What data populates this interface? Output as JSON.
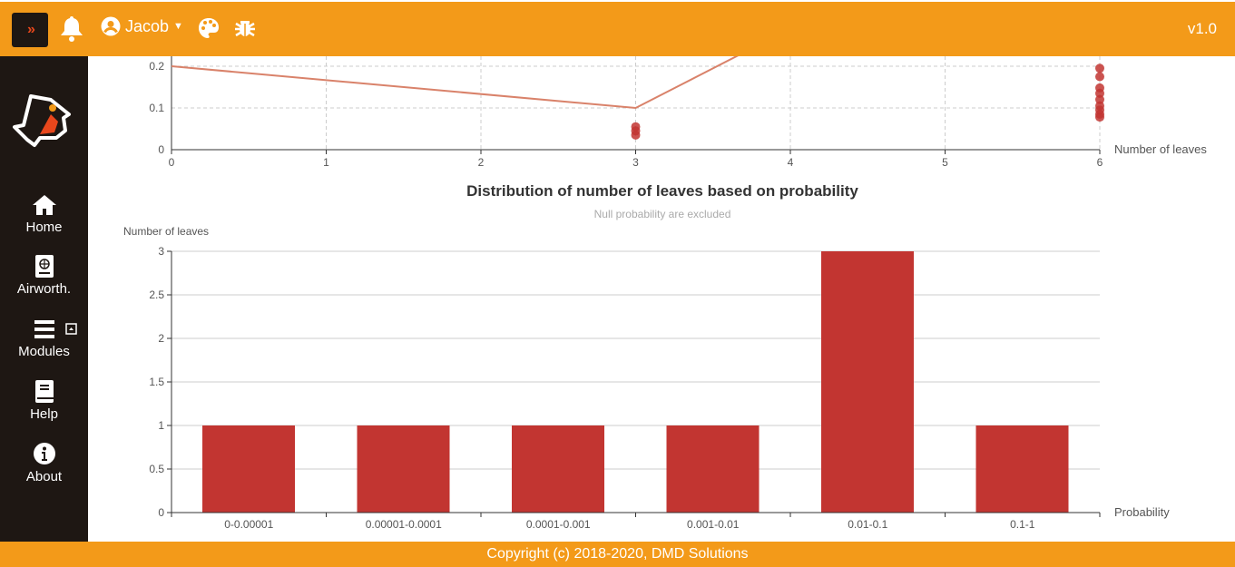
{
  "topbar": {
    "toggle_icon": "double-chevron-right-icon",
    "user": "Jacob",
    "version": "v1.0",
    "icons": [
      "bell-icon",
      "user-circle-icon",
      "palette-icon",
      "bug-icon"
    ]
  },
  "sidebar": {
    "items": [
      {
        "label": "Home",
        "icon": "home-icon"
      },
      {
        "label": "Airworth.",
        "icon": "passport-book-icon"
      },
      {
        "label": "Modules",
        "icon": "bars-icon"
      },
      {
        "label": "Help",
        "icon": "book-icon"
      },
      {
        "label": "About",
        "icon": "info-circle-icon"
      }
    ]
  },
  "footer": {
    "text": "Copyright (c) 2018-2020, DMD Solutions"
  },
  "colors": {
    "accent": "#f39a19",
    "sidebar": "#1e1713",
    "bar": "#c23531",
    "line": "#d9826a"
  },
  "chart_data": [
    {
      "type": "scatter",
      "xlabel": "Number of leaves",
      "ylabel": "",
      "xlim": [
        0,
        6
      ],
      "ylim_visible": [
        0,
        0.22
      ],
      "xticks": [
        "0",
        "1",
        "2",
        "3",
        "4",
        "5",
        "6"
      ],
      "yticks": [
        "0",
        "0.1",
        "0.2"
      ],
      "grid": true,
      "line": {
        "x": [
          0,
          3,
          6
        ],
        "y": [
          0.2,
          0.1,
          0.67
        ]
      },
      "points": {
        "x": [
          3,
          3,
          3,
          6,
          6,
          6,
          6,
          6,
          6,
          6,
          6,
          6
        ],
        "y": [
          0.035,
          0.045,
          0.055,
          0.195,
          0.175,
          0.148,
          0.135,
          0.12,
          0.105,
          0.095,
          0.085,
          0.078
        ]
      }
    },
    {
      "type": "bar",
      "title": "Distribution of number of leaves based on probability",
      "subtitle": "Null probability are excluded",
      "xlabel": "Probability",
      "ylabel": "Number of leaves",
      "categories": [
        "0-0.00001",
        "0.00001-0.0001",
        "0.0001-0.001",
        "0.001-0.01",
        "0.01-0.1",
        "0.1-1"
      ],
      "values": [
        1,
        1,
        1,
        1,
        3,
        1
      ],
      "ylim": [
        0,
        3
      ],
      "yticks": [
        "0",
        "0.5",
        "1",
        "1.5",
        "2",
        "2.5",
        "3"
      ],
      "grid": true
    }
  ]
}
